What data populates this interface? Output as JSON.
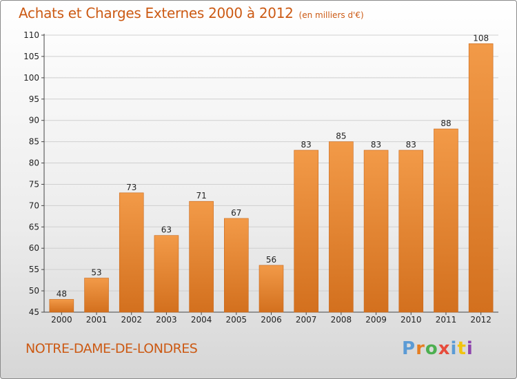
{
  "chart_data": {
    "type": "bar",
    "title": "Achats et Charges Externes 2000 à 2012",
    "unit": "(en milliers d'€)",
    "categories": [
      "2000",
      "2001",
      "2002",
      "2003",
      "2004",
      "2005",
      "2006",
      "2007",
      "2008",
      "2009",
      "2010",
      "2011",
      "2012"
    ],
    "values": [
      48,
      53,
      73,
      63,
      71,
      67,
      56,
      83,
      85,
      83,
      83,
      88,
      108
    ],
    "ylim": [
      45,
      110
    ],
    "yticks": [
      45,
      50,
      55,
      60,
      65,
      70,
      75,
      80,
      85,
      90,
      95,
      100,
      105,
      110
    ],
    "grid": true,
    "bar_color": "#f29a48",
    "bar_color_dark": "#d3701e",
    "grid_color": "#cfcfcf"
  },
  "footer": {
    "commune": "NOTRE-DAME-DE-LONDRES",
    "brand": "Proxiti",
    "brand_colors": [
      "#5b9bd5",
      "#e67e22",
      "#4caf50",
      "#e74c3c",
      "#5b9bd5",
      "#f1c40f",
      "#8e44ad"
    ]
  }
}
